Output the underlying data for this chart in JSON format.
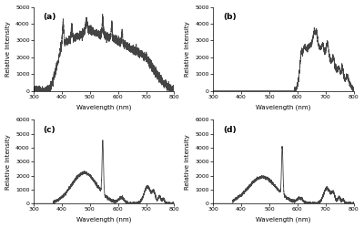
{
  "subplots": [
    {
      "label": "(a)",
      "show_label": true,
      "xlim": [
        300,
        800
      ],
      "ylim": [
        0,
        5000
      ],
      "yticks": [
        0,
        1000,
        2000,
        3000,
        4000,
        5000
      ],
      "xticks": [
        300,
        400,
        500,
        600,
        700,
        800
      ],
      "xlabel": "Wavelength (nm)",
      "ylabel": "Relative Intensity"
    },
    {
      "label": "(b)",
      "show_label": true,
      "xlim": [
        300,
        800
      ],
      "ylim": [
        0,
        5000
      ],
      "yticks": [
        0,
        1000,
        2000,
        3000,
        4000,
        5000
      ],
      "xticks": [
        300,
        400,
        500,
        600,
        700,
        800
      ],
      "xlabel": "Wavelength (nm)",
      "ylabel": "Relative Intensity"
    },
    {
      "label": "(c)",
      "show_label": true,
      "xlim": [
        300,
        800
      ],
      "ylim": [
        0,
        6000
      ],
      "yticks": [
        0,
        1000,
        2000,
        3000,
        4000,
        5000,
        6000
      ],
      "xticks": [
        300,
        400,
        500,
        600,
        700,
        800
      ],
      "xlabel": "Wavelength (nm)",
      "ylabel": "Relative Intensity"
    },
    {
      "label": "(d)",
      "show_label": true,
      "xlim": [
        300,
        800
      ],
      "ylim": [
        0,
        6000
      ],
      "yticks": [
        0,
        1000,
        2000,
        3000,
        4000,
        5000,
        6000
      ],
      "xticks": [
        300,
        400,
        500,
        600,
        700,
        800
      ],
      "xlabel": "Wavelength (nm)",
      "ylabel": "Relative Intensity"
    }
  ],
  "background_color": "#ffffff",
  "line_color": "#444444",
  "line_width": 0.6
}
